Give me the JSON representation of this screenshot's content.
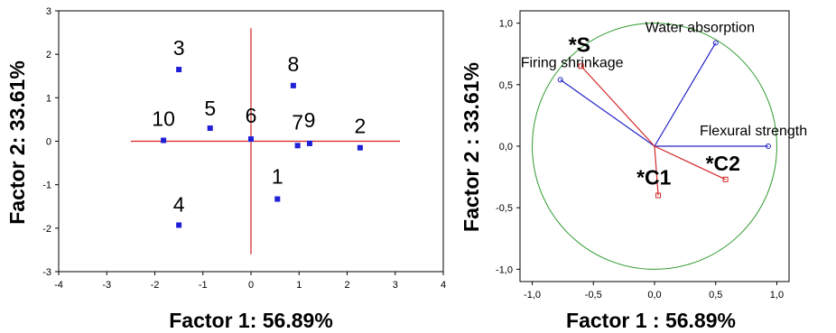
{
  "chart_data": [
    {
      "type": "scatter",
      "xlabel": "Factor 1: 56.89%",
      "ylabel": "Factor 2: 33.61%",
      "xlim": [
        -4,
        4
      ],
      "ylim": [
        -3,
        3
      ],
      "xticks": [
        "-4",
        "-3",
        "-2",
        "-1",
        "0",
        "1",
        "2",
        "3",
        "4"
      ],
      "yticks": [
        "3",
        "2",
        "1",
        "0",
        "-1",
        "-2",
        "-3"
      ],
      "points": [
        {
          "label": "3",
          "x": -1.5,
          "y": 1.65
        },
        {
          "label": "8",
          "x": 0.88,
          "y": 1.28
        },
        {
          "label": "5",
          "x": -0.85,
          "y": 0.3
        },
        {
          "label": "10",
          "x": -1.82,
          "y": 0.02
        },
        {
          "label": "6",
          "x": 0.0,
          "y": 0.05
        },
        {
          "label": "7",
          "x": 0.97,
          "y": -0.1
        },
        {
          "label": "9",
          "x": 1.22,
          "y": -0.05
        },
        {
          "label": "2",
          "x": 2.27,
          "y": -0.15
        },
        {
          "label": "1",
          "x": 0.55,
          "y": -1.33
        },
        {
          "label": "4",
          "x": -1.5,
          "y": -1.93
        }
      ],
      "colors": {
        "point": "#1f1fd6",
        "axes": "#d62020"
      }
    },
    {
      "type": "scatter",
      "xlabel": "Factor 1 : 56.89%",
      "ylabel": "Factor 2 : 33.61%",
      "xlim": [
        -1.1,
        1.1
      ],
      "ylim": [
        -1.1,
        1.1
      ],
      "xticks": [
        "-1,0",
        "-0,5",
        "0,0",
        "0,5",
        "1,0"
      ],
      "yticks": [
        "1,0",
        "0,5",
        "0,0",
        "-0,5",
        "-1,0"
      ],
      "active_variables": [
        {
          "label": "Water absorption",
          "x": 0.5,
          "y": 0.84
        },
        {
          "label": "Firing shrinkage",
          "x": -0.77,
          "y": 0.54
        },
        {
          "label": "Flexural strength",
          "x": 0.93,
          "y": 0.0
        }
      ],
      "supplementary_variables": [
        {
          "label": "*S",
          "x": -0.6,
          "y": 0.65
        },
        {
          "label": "*C1",
          "x": 0.03,
          "y": -0.4
        },
        {
          "label": "*C2",
          "x": 0.58,
          "y": -0.27
        }
      ],
      "colors": {
        "active": "#2424c8",
        "supplementary": "#d42828",
        "circle": "#2e9a2e"
      }
    }
  ]
}
